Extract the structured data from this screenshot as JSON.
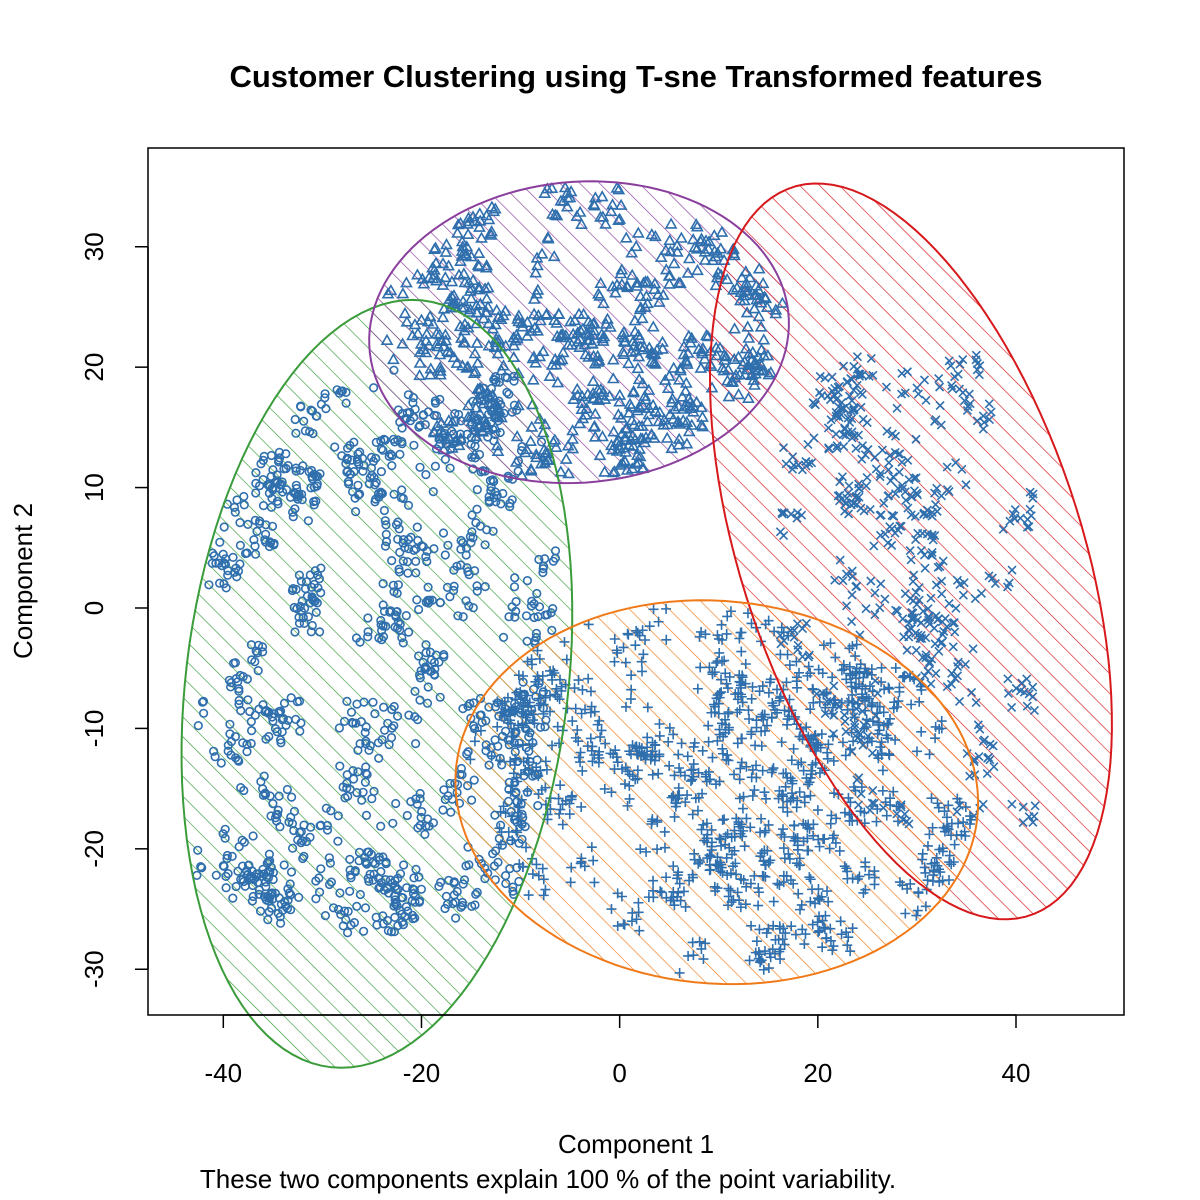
{
  "chart_data": {
    "type": "scatter",
    "title": "Customer Clustering using T-sne Transformed features",
    "xlabel": "Component 1",
    "ylabel": "Component 2",
    "subtitle": "These two components explain 100 % of the point variability.",
    "xlim": [
      -47.6,
      50.9
    ],
    "ylim": [
      -33.8,
      38.2
    ],
    "xticks": [
      -40,
      -20,
      0,
      20,
      40
    ],
    "yticks": [
      -30,
      -20,
      -10,
      0,
      10,
      20,
      30
    ],
    "grid": false,
    "legend": "none",
    "point_color": "#2f6fad",
    "clusters": [
      {
        "id": 1,
        "marker": "circle",
        "ellipse_color": "#3a9c3a",
        "ellipse": {
          "center": [
            -24.5,
            -6.3
          ],
          "semi_major": 32.2,
          "semi_minor": 19.2,
          "angle_deg": 80
        },
        "points_box": {
          "x": [
            -43,
            -6
          ],
          "y": [
            -27,
            20
          ]
        },
        "point_count": 1150
      },
      {
        "id": 2,
        "marker": "triangle",
        "ellipse_color": "#8a3f9c",
        "ellipse": {
          "center": [
            -4.1,
            22.9
          ],
          "semi_major": 21.2,
          "semi_minor": 12.5,
          "angle_deg": 3
        },
        "points_box": {
          "x": [
            -24,
            19
          ],
          "y": [
            11,
            35
          ]
        },
        "point_count": 750
      },
      {
        "id": 3,
        "marker": "x",
        "ellipse_color": "#d7191c",
        "ellipse": {
          "center": [
            29.4,
            4.7
          ],
          "semi_major": 32.6,
          "semi_minor": 16.8,
          "angle_deg": -66
        },
        "points_box": {
          "x": [
            12,
            42
          ],
          "y": [
            -18,
            21
          ]
        },
        "point_count": 500
      },
      {
        "id": 4,
        "marker": "plus",
        "ellipse_color": "#f07a19",
        "ellipse": {
          "center": [
            9.8,
            -15.3
          ],
          "semi_major": 26.4,
          "semi_minor": 15.9,
          "angle_deg": -3
        },
        "points_box": {
          "x": [
            -17,
            36
          ],
          "y": [
            -31,
            0
          ]
        },
        "point_count": 1100
      }
    ]
  }
}
